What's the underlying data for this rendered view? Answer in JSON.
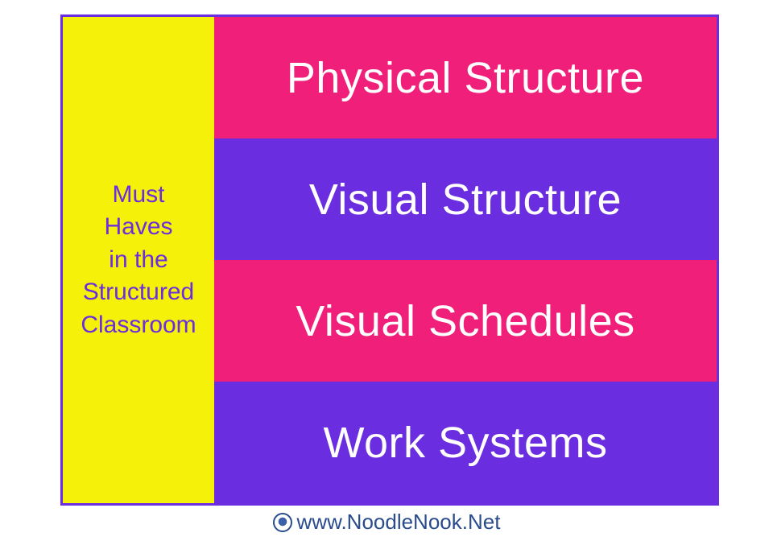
{
  "colors": {
    "border": "#6b2de0",
    "sidebar_bg": "#f5f108",
    "sidebar_text": "#6b2de0",
    "bar_pink": "#ef1f7a",
    "bar_purple": "#6b2de0",
    "bar_text": "#ffffff",
    "footer_text": "#2a4b8d"
  },
  "sidebar": {
    "lines": [
      "Must",
      "Haves",
      "in the",
      "Structured",
      "Classroom"
    ]
  },
  "bars": [
    {
      "label": "Physical Structure",
      "bg_key": "bar_pink"
    },
    {
      "label": "Visual Structure",
      "bg_key": "bar_purple"
    },
    {
      "label": "Visual Schedules",
      "bg_key": "bar_pink"
    },
    {
      "label": "Work Systems",
      "bg_key": "bar_purple"
    }
  ],
  "footer": {
    "text": "www.NoodleNook.Net"
  }
}
